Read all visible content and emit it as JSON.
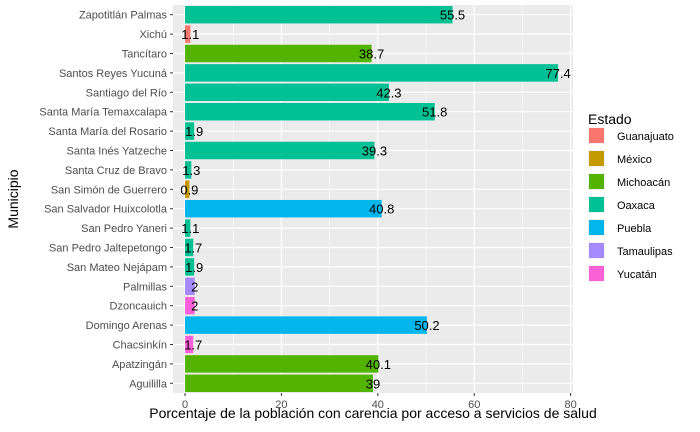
{
  "chart_data": {
    "type": "bar",
    "orientation": "horizontal",
    "xlabel": "Porcentaje de la población con carencia por acceso a servicios de salud",
    "ylabel": "Municipio",
    "xlim": [
      -2.5,
      80.5
    ],
    "xticks": [
      0,
      20,
      40,
      60,
      80
    ],
    "grid": true,
    "legend_title": "Estado",
    "legend_position": "right",
    "legend": [
      {
        "name": "Guanajuato",
        "color": "#F8766D"
      },
      {
        "name": "México",
        "color": "#C49A00"
      },
      {
        "name": "Michoacán",
        "color": "#53B400"
      },
      {
        "name": "Oaxaca",
        "color": "#00C094"
      },
      {
        "name": "Puebla",
        "color": "#00B6EB"
      },
      {
        "name": "Tamaulipas",
        "color": "#A58AFF"
      },
      {
        "name": "Yucatán",
        "color": "#FB61D7"
      }
    ],
    "bars": [
      {
        "category": "Zapotitlán Palmas",
        "value": 55.5,
        "label": "55.5",
        "state": "Oaxaca"
      },
      {
        "category": "Xichú",
        "value": 1.1,
        "label": "1.1",
        "state": "Guanajuato"
      },
      {
        "category": "Tancítaro",
        "value": 38.7,
        "label": "38.7",
        "state": "Michoacán"
      },
      {
        "category": "Santos Reyes Yucuná",
        "value": 77.4,
        "label": "77.4",
        "state": "Oaxaca"
      },
      {
        "category": "Santiago del Río",
        "value": 42.3,
        "label": "42.3",
        "state": "Oaxaca"
      },
      {
        "category": "Santa María Temaxcalapa",
        "value": 51.8,
        "label": "51.8",
        "state": "Oaxaca"
      },
      {
        "category": "Santa María del Rosario",
        "value": 1.9,
        "label": "1.9",
        "state": "Oaxaca"
      },
      {
        "category": "Santa Inés Yatzeche",
        "value": 39.3,
        "label": "39.3",
        "state": "Oaxaca"
      },
      {
        "category": "Santa Cruz de Bravo",
        "value": 1.3,
        "label": "1.3",
        "state": "Oaxaca"
      },
      {
        "category": "San Simón de Guerrero",
        "value": 0.9,
        "label": "0.9",
        "state": "México"
      },
      {
        "category": "San Salvador Huixcolotla",
        "value": 40.8,
        "label": "40.8",
        "state": "Puebla"
      },
      {
        "category": "San Pedro Yaneri",
        "value": 1.1,
        "label": "1.1",
        "state": "Oaxaca"
      },
      {
        "category": "San Pedro Jaltepetongo",
        "value": 1.7,
        "label": "1.7",
        "state": "Oaxaca"
      },
      {
        "category": "San Mateo Nejápam",
        "value": 1.9,
        "label": "1.9",
        "state": "Oaxaca"
      },
      {
        "category": "Palmillas",
        "value": 2,
        "label": "2",
        "state": "Tamaulipas"
      },
      {
        "category": "Dzoncauich",
        "value": 2,
        "label": "2",
        "state": "Yucatán"
      },
      {
        "category": "Domingo Arenas",
        "value": 50.2,
        "label": "50.2",
        "state": "Puebla"
      },
      {
        "category": "Chacsinkín",
        "value": 1.7,
        "label": "1.7",
        "state": "Yucatán"
      },
      {
        "category": "Apatzingán",
        "value": 40.1,
        "label": "40.1",
        "state": "Michoacán"
      },
      {
        "category": "Aguililla",
        "value": 39,
        "label": "39",
        "state": "Michoacán"
      }
    ]
  }
}
